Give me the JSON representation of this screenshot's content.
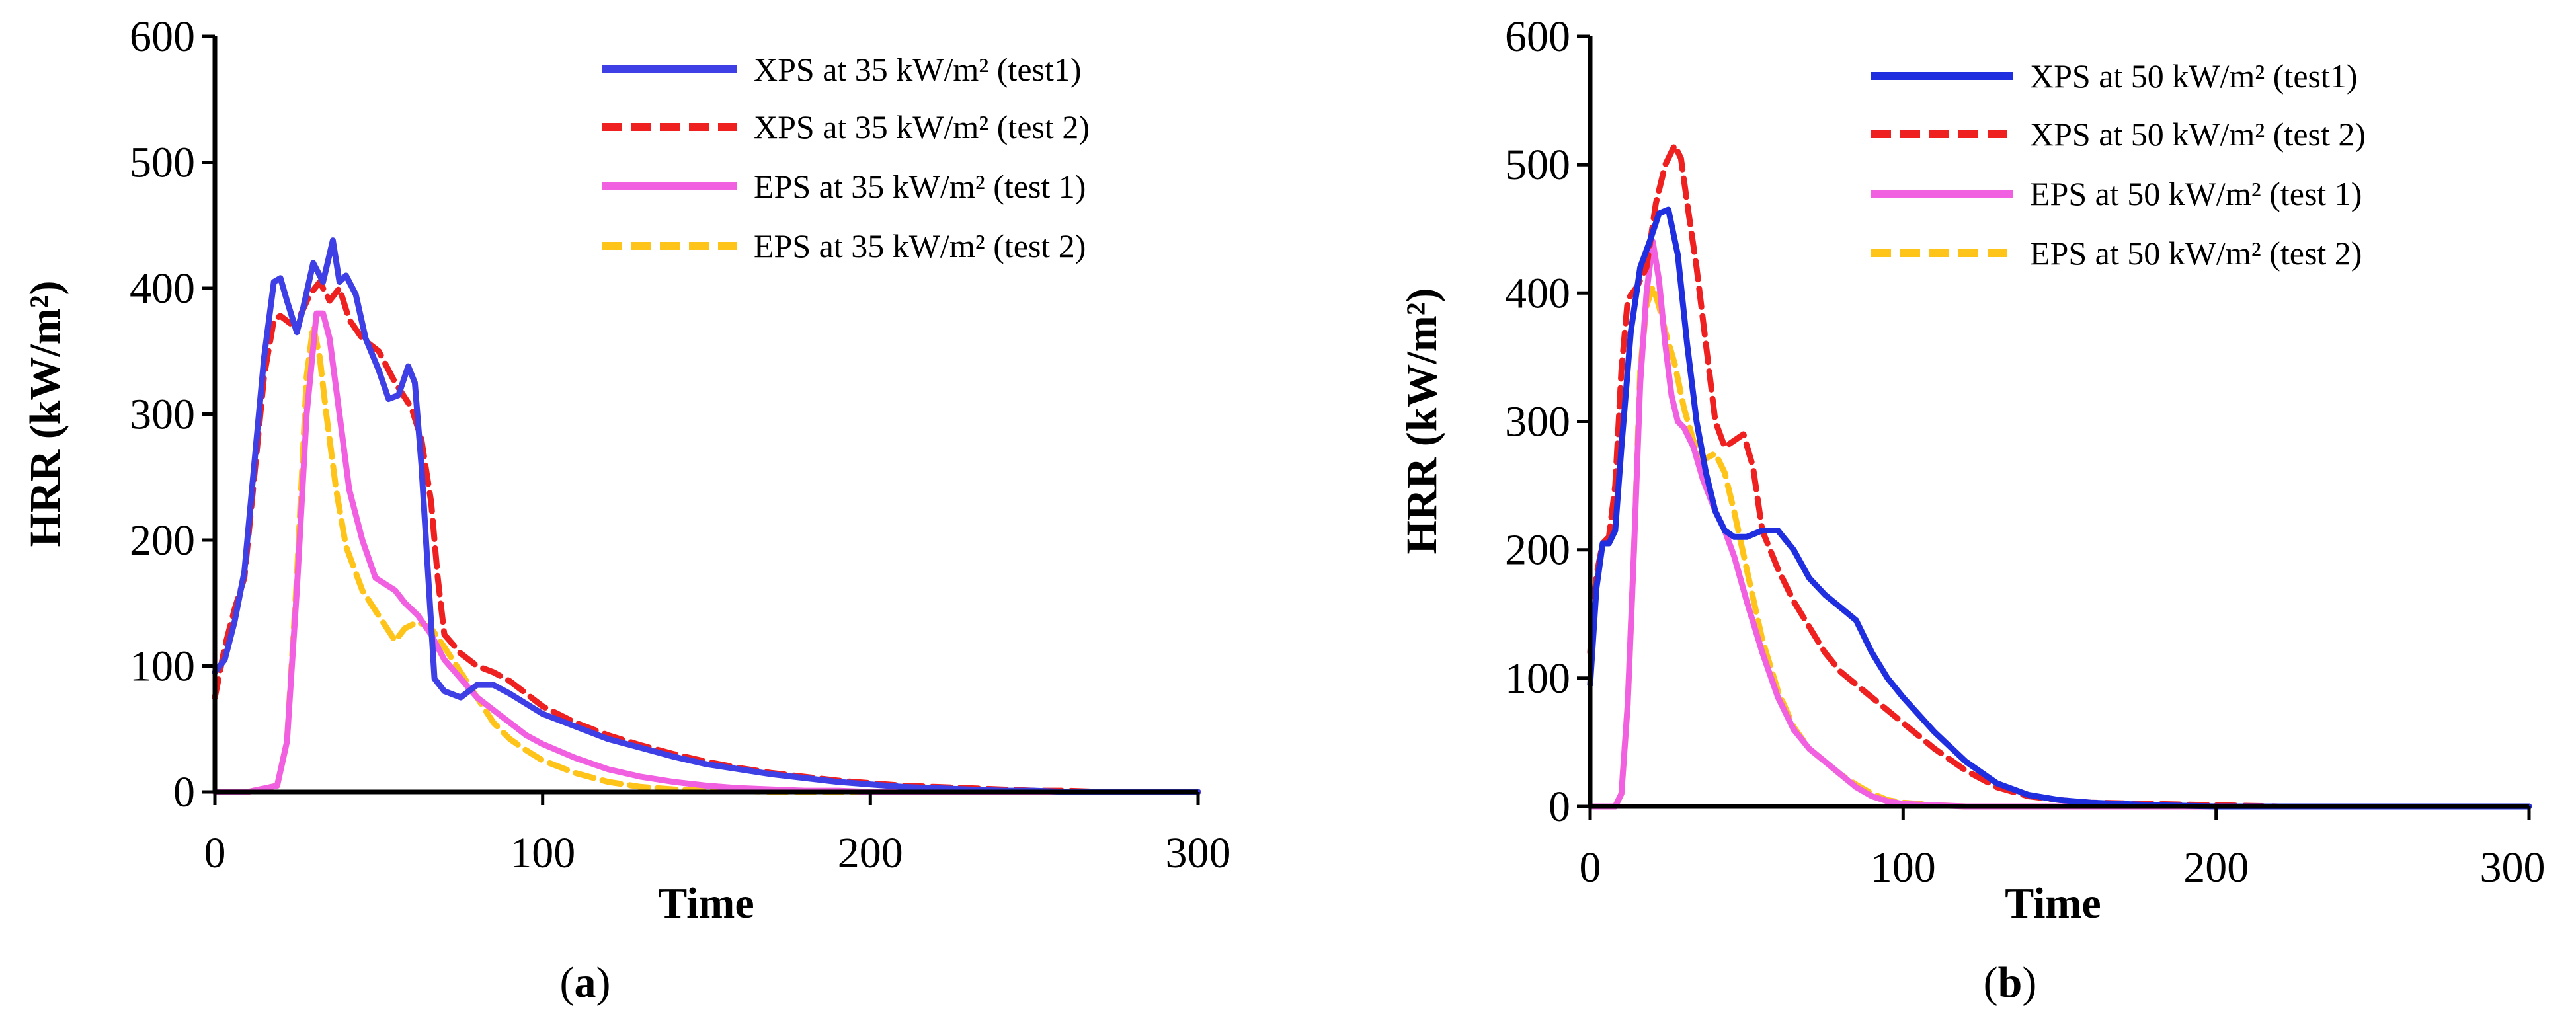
{
  "chart_data": [
    {
      "type": "line",
      "panel_label": "a",
      "xlabel": "Time",
      "ylabel": "HRR (kW/m²)",
      "xlim": [
        0,
        300
      ],
      "ylim": [
        0,
        600
      ],
      "x_ticks": [
        "0",
        "100",
        "200",
        "300"
      ],
      "y_ticks": [
        "0",
        "100",
        "200",
        "300",
        "400",
        "500",
        "600"
      ],
      "legend_position": "top-right",
      "series": [
        {
          "name": "XPS at 35 kW/m² (test1)",
          "color": "#3f3fe6",
          "dash": "solid",
          "x": [
            0,
            3,
            6,
            9,
            12,
            15,
            18,
            20,
            22,
            25,
            27,
            30,
            33,
            36,
            38,
            40,
            43,
            46,
            50,
            53,
            56,
            59,
            61,
            63,
            65,
            67,
            70,
            75,
            80,
            85,
            90,
            95,
            100,
            110,
            120,
            130,
            140,
            150,
            160,
            170,
            180,
            190,
            200,
            210,
            220,
            230,
            240,
            250,
            260,
            270,
            280,
            290,
            300
          ],
          "y": [
            95,
            105,
            135,
            175,
            260,
            345,
            405,
            408,
            390,
            365,
            385,
            420,
            405,
            438,
            405,
            410,
            395,
            360,
            335,
            312,
            315,
            338,
            325,
            260,
            175,
            90,
            80,
            75,
            85,
            85,
            78,
            70,
            62,
            52,
            42,
            35,
            28,
            22,
            18,
            14,
            11,
            8,
            6,
            4,
            3,
            2,
            1,
            1,
            0,
            0,
            0,
            0,
            0
          ]
        },
        {
          "name": "XPS at 35 kW/m² (test 2)",
          "color": "#ee2020",
          "dash": "dashed",
          "x": [
            0,
            3,
            6,
            9,
            12,
            15,
            18,
            20,
            23,
            26,
            29,
            32,
            35,
            38,
            41,
            45,
            50,
            55,
            60,
            63,
            66,
            68,
            70,
            75,
            80,
            85,
            90,
            95,
            100,
            110,
            120,
            130,
            140,
            150,
            160,
            170,
            180,
            190,
            200,
            210,
            220,
            230,
            240,
            250,
            260,
            270,
            280,
            290,
            300
          ],
          "y": [
            75,
            115,
            145,
            170,
            250,
            330,
            375,
            378,
            372,
            378,
            395,
            405,
            390,
            400,
            375,
            360,
            350,
            325,
            305,
            280,
            230,
            170,
            125,
            110,
            100,
            95,
            88,
            78,
            68,
            55,
            45,
            37,
            30,
            24,
            19,
            15,
            12,
            9,
            7,
            5,
            4,
            3,
            2,
            1,
            1,
            0,
            0,
            0,
            0
          ]
        },
        {
          "name": "EPS at 35 kW/m² (test 1)",
          "color": "#f060e0",
          "dash": "solid",
          "x": [
            0,
            10,
            19,
            22,
            25,
            28,
            31,
            33,
            35,
            38,
            41,
            45,
            49,
            52,
            55,
            58,
            62,
            66,
            70,
            75,
            80,
            85,
            90,
            95,
            100,
            110,
            120,
            130,
            140,
            150,
            160,
            170,
            180,
            190,
            200,
            220,
            240,
            260,
            280,
            300
          ],
          "y": [
            0,
            0,
            5,
            40,
            160,
            300,
            380,
            380,
            360,
            300,
            240,
            200,
            170,
            165,
            160,
            150,
            140,
            125,
            105,
            90,
            75,
            65,
            55,
            45,
            38,
            27,
            18,
            12,
            8,
            5,
            3,
            2,
            1,
            1,
            0,
            0,
            0,
            0,
            0,
            0
          ],
          "note": "EPS test 1 descending shoulder near 160 around t=52 s"
        },
        {
          "name": "EPS at 35 kW/m² (test 2)",
          "color": "#ffc41a",
          "dash": "dashed",
          "x": [
            0,
            10,
            19,
            22,
            25,
            28,
            30,
            32,
            34,
            37,
            40,
            45,
            50,
            55,
            58,
            62,
            66,
            70,
            75,
            80,
            85,
            90,
            95,
            100,
            110,
            120,
            130,
            140,
            150,
            160,
            170,
            180,
            200,
            220,
            240,
            260,
            280,
            300
          ],
          "y": [
            0,
            0,
            5,
            40,
            170,
            330,
            370,
            345,
            300,
            240,
            195,
            160,
            140,
            120,
            130,
            135,
            130,
            115,
            95,
            75,
            55,
            42,
            33,
            25,
            15,
            8,
            4,
            2,
            1,
            1,
            0,
            0,
            0,
            0,
            0,
            0,
            0,
            0
          ]
        }
      ]
    },
    {
      "type": "line",
      "panel_label": "b",
      "xlabel": "Time",
      "ylabel": "HRR (kW/m²)",
      "xlim": [
        0,
        300
      ],
      "ylim": [
        0,
        600
      ],
      "x_ticks": [
        "0",
        "100",
        "200",
        "300"
      ],
      "y_ticks": [
        "0",
        "100",
        "200",
        "300",
        "400",
        "500",
        "600"
      ],
      "legend_position": "top-right",
      "series": [
        {
          "name": "XPS at 50 kW/m² (test1)",
          "color": "#1f2fe0",
          "dash": "solid",
          "x": [
            0,
            2,
            4,
            6,
            8,
            10,
            13,
            16,
            19,
            22,
            25,
            28,
            31,
            34,
            37,
            40,
            43,
            46,
            50,
            55,
            60,
            65,
            70,
            75,
            80,
            85,
            90,
            95,
            100,
            110,
            120,
            130,
            140,
            150,
            160,
            170,
            180,
            200,
            220,
            240,
            260,
            280,
            300
          ],
          "y": [
            95,
            170,
            205,
            205,
            215,
            280,
            370,
            420,
            440,
            462,
            465,
            430,
            360,
            300,
            260,
            230,
            215,
            210,
            210,
            215,
            215,
            200,
            178,
            165,
            155,
            145,
            120,
            100,
            85,
            58,
            35,
            18,
            9,
            5,
            3,
            2,
            1,
            0,
            0,
            0,
            0,
            0,
            0
          ]
        },
        {
          "name": "XPS at 50 kW/m² (test 2)",
          "color": "#ee2020",
          "dash": "dashed",
          "x": [
            0,
            2,
            4,
            6,
            8,
            10,
            12,
            15,
            18,
            21,
            24,
            27,
            29,
            31,
            34,
            37,
            40,
            43,
            46,
            49,
            52,
            55,
            60,
            65,
            70,
            75,
            80,
            90,
            100,
            110,
            120,
            130,
            140,
            150,
            160,
            180,
            200,
            220,
            240,
            260,
            280,
            300
          ],
          "y": [
            120,
            180,
            205,
            210,
            250,
            340,
            395,
            405,
            420,
            470,
            500,
            515,
            505,
            470,
            420,
            360,
            300,
            280,
            285,
            290,
            265,
            215,
            185,
            160,
            140,
            120,
            105,
            85,
            65,
            45,
            28,
            15,
            8,
            5,
            3,
            2,
            1,
            0,
            0,
            0,
            0,
            0
          ]
        },
        {
          "name": "EPS at 50 kW/m² (test 1)",
          "color": "#f060e0",
          "dash": "solid",
          "x": [
            0,
            8,
            10,
            12,
            14,
            16,
            18,
            20,
            22,
            24,
            26,
            28,
            30,
            33,
            36,
            40,
            43,
            46,
            50,
            55,
            60,
            65,
            70,
            75,
            80,
            85,
            90,
            95,
            100,
            110,
            120,
            140,
            160,
            200,
            250,
            300
          ],
          "y": [
            0,
            0,
            10,
            80,
            200,
            330,
            400,
            440,
            410,
            360,
            320,
            300,
            295,
            280,
            255,
            230,
            215,
            195,
            160,
            120,
            85,
            60,
            45,
            35,
            25,
            15,
            8,
            4,
            2,
            1,
            0,
            0,
            0,
            0,
            0,
            0
          ]
        },
        {
          "name": "EPS at 50 kW/m² (test 2)",
          "color": "#ffc41a",
          "dash": "dashed",
          "x": [
            0,
            8,
            10,
            12,
            14,
            16,
            18,
            20,
            22,
            24,
            27,
            30,
            33,
            36,
            40,
            43,
            46,
            50,
            55,
            60,
            65,
            70,
            75,
            80,
            85,
            90,
            95,
            100,
            110,
            120,
            140,
            160,
            200,
            250,
            300
          ],
          "y": [
            0,
            0,
            10,
            80,
            200,
            340,
            390,
            405,
            390,
            370,
            345,
            310,
            285,
            270,
            275,
            260,
            230,
            185,
            130,
            90,
            62,
            45,
            35,
            25,
            17,
            10,
            5,
            3,
            1,
            0,
            0,
            0,
            0,
            0,
            0
          ]
        }
      ]
    }
  ]
}
